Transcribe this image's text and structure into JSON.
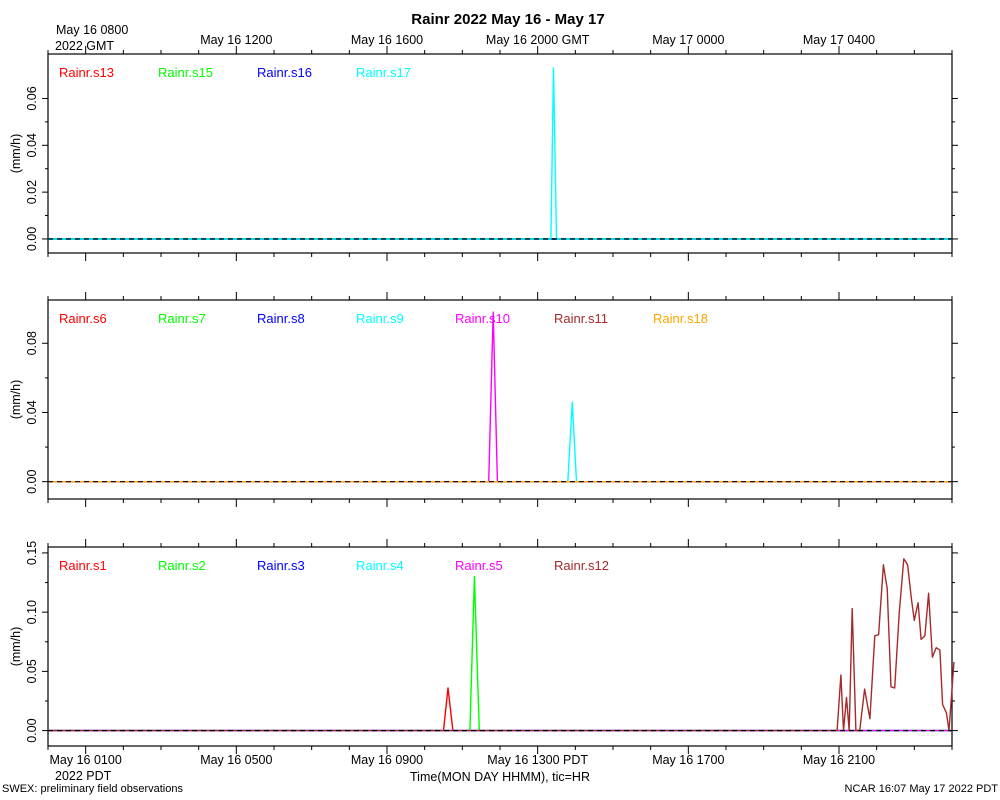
{
  "header": {
    "title": "Rainr 2022 May 16 - May 17",
    "top_axis_labels": [
      "May 16 0800",
      "May 16 1200",
      "May 16 1600",
      "May 16 2000 GMT",
      "May 17 0000",
      "May 17 0400"
    ],
    "top_axis_year": "2022 GMT"
  },
  "footer": {
    "bottom_axis_labels": [
      "May 16 0100",
      "May 16 0500",
      "May 16 0900",
      "May 16 1300 PDT",
      "May 16 1700",
      "May 16 2100"
    ],
    "bottom_axis_year": "2022 PDT",
    "xlabel": "Time(MON DAY HHMM), tic=HR",
    "left_note": "SWEX: preliminary field observations",
    "right_note": "NCAR 16:07 May 17 2022 PDT"
  },
  "chart_data": [
    {
      "type": "line",
      "ylabel": "(mm/h)",
      "xlim": [
        -1.0,
        23.0
      ],
      "ylim": [
        -0.006,
        0.079
      ],
      "yticks": [
        "0.00",
        "0.02",
        "0.04",
        "0.06"
      ],
      "series": [
        {
          "name": "Rainr.s13",
          "color": "#ff0000",
          "points": [
            [
              -1.0,
              0
            ],
            [
              23.0,
              0
            ]
          ]
        },
        {
          "name": "Rainr.s15",
          "color": "#00ff00",
          "points": [
            [
              -1.0,
              0
            ],
            [
              23.0,
              0
            ]
          ]
        },
        {
          "name": "Rainr.s16",
          "color": "#0000ff",
          "points": [
            [
              -1.0,
              0
            ],
            [
              23.0,
              0
            ]
          ]
        },
        {
          "name": "Rainr.s17",
          "color": "#00ffff",
          "points": [
            [
              -1.0,
              0
            ],
            [
              12.35,
              0
            ],
            [
              12.42,
              0.073
            ],
            [
              12.5,
              0
            ],
            [
              23.0,
              0
            ]
          ]
        }
      ]
    },
    {
      "type": "line",
      "ylabel": "(mm/h)",
      "xlim": [
        -1.0,
        23.0
      ],
      "ylim": [
        -0.01,
        0.105
      ],
      "yticks": [
        "0.00",
        "0.04",
        "0.08"
      ],
      "series": [
        {
          "name": "Rainr.s6",
          "color": "#ff0000",
          "points": [
            [
              -1.0,
              0
            ],
            [
              23.0,
              0
            ]
          ]
        },
        {
          "name": "Rainr.s7",
          "color": "#00ff00",
          "points": [
            [
              -1.0,
              0
            ],
            [
              23.0,
              0
            ]
          ]
        },
        {
          "name": "Rainr.s8",
          "color": "#0000ff",
          "points": [
            [
              -1.0,
              0
            ],
            [
              23.0,
              0
            ]
          ]
        },
        {
          "name": "Rainr.s9",
          "color": "#00ffff",
          "points": [
            [
              -1.0,
              0
            ],
            [
              12.8,
              0
            ],
            [
              12.92,
              0.046
            ],
            [
              13.03,
              0
            ],
            [
              23.0,
              0
            ]
          ]
        },
        {
          "name": "Rainr.s10",
          "color": "#ff00ff",
          "points": [
            [
              -1.0,
              0
            ],
            [
              10.7,
              0
            ],
            [
              10.82,
              0.098
            ],
            [
              10.93,
              0
            ],
            [
              23.0,
              0
            ]
          ]
        },
        {
          "name": "Rainr.s11",
          "color": "#a52a2a",
          "points": [
            [
              -1.0,
              0
            ],
            [
              23.0,
              0
            ]
          ]
        },
        {
          "name": "Rainr.s18",
          "color": "#ffa500",
          "points": [
            [
              -1.0,
              0
            ],
            [
              23.0,
              0
            ]
          ]
        }
      ]
    },
    {
      "type": "line",
      "ylabel": "(mm/h)",
      "xlim": [
        -1.0,
        23.0
      ],
      "ylim": [
        -0.013,
        0.155
      ],
      "yticks": [
        "0.00",
        "0.05",
        "0.10",
        "0.15"
      ],
      "series": [
        {
          "name": "Rainr.s1",
          "color": "#ff0000",
          "points": [
            [
              -1.0,
              0
            ],
            [
              9.5,
              0
            ],
            [
              9.62,
              0.036
            ],
            [
              9.75,
              0
            ],
            [
              23.0,
              0
            ]
          ]
        },
        {
          "name": "Rainr.s2",
          "color": "#00ff00",
          "points": [
            [
              -1.0,
              0
            ],
            [
              10.2,
              0
            ],
            [
              10.32,
              0.13
            ],
            [
              10.45,
              0
            ],
            [
              23.0,
              0
            ]
          ]
        },
        {
          "name": "Rainr.s3",
          "color": "#0000ff",
          "points": [
            [
              -1.0,
              0
            ],
            [
              23.0,
              0
            ]
          ]
        },
        {
          "name": "Rainr.s4",
          "color": "#00ffff",
          "points": [
            [
              -1.0,
              0
            ],
            [
              23.0,
              0
            ]
          ]
        },
        {
          "name": "Rainr.s5",
          "color": "#ff00ff",
          "points": [
            [
              -1.0,
              0
            ],
            [
              23.0,
              0
            ]
          ]
        },
        {
          "name": "Rainr.s12",
          "color": "#a52a2a",
          "points": [
            [
              -1.0,
              0
            ],
            [
              19.95,
              0
            ],
            [
              20.05,
              0.047
            ],
            [
              20.12,
              0
            ],
            [
              20.2,
              0.028
            ],
            [
              20.27,
              0
            ],
            [
              20.35,
              0.103
            ],
            [
              20.45,
              0
            ],
            [
              20.55,
              0
            ],
            [
              20.68,
              0.035
            ],
            [
              20.82,
              0.01
            ],
            [
              20.95,
              0.08
            ],
            [
              21.05,
              0.081
            ],
            [
              21.18,
              0.14
            ],
            [
              21.28,
              0.12
            ],
            [
              21.38,
              0.037
            ],
            [
              21.48,
              0.036
            ],
            [
              21.6,
              0.1
            ],
            [
              21.72,
              0.145
            ],
            [
              21.82,
              0.14
            ],
            [
              21.92,
              0.112
            ],
            [
              22.0,
              0.093
            ],
            [
              22.1,
              0.108
            ],
            [
              22.18,
              0.077
            ],
            [
              22.28,
              0.08
            ],
            [
              22.38,
              0.116
            ],
            [
              22.48,
              0.062
            ],
            [
              22.58,
              0.07
            ],
            [
              22.68,
              0.068
            ],
            [
              22.75,
              0.022
            ],
            [
              22.85,
              0.015
            ],
            [
              22.92,
              0
            ],
            [
              23.0,
              0.035
            ],
            [
              23.05,
              0.058
            ]
          ]
        }
      ]
    }
  ]
}
